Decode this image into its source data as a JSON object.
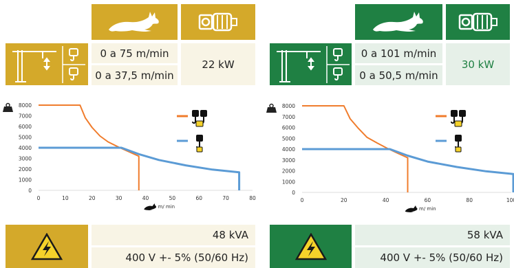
{
  "panels": [
    {
      "id": "left",
      "accent": "#d4a92a",
      "light": "#f8f4e5",
      "speed_rows": [
        "0 a 75 m/min",
        "0 a 37,5 m/min"
      ],
      "power": "22 kW",
      "kva": "48 kVA",
      "voltage": "400 V +- 5% (50/60 Hz)",
      "axis_unit": "m/ min",
      "icons": [
        "rabbit-icon",
        "motor-icon",
        "crane-icon",
        "hook-icon",
        "double-hook-icon",
        "weight-icon",
        "electric-hazard-icon"
      ],
      "chart_data": {
        "type": "line",
        "x_ticks": [
          0,
          10,
          20,
          30,
          40,
          50,
          60,
          70,
          80
        ],
        "y_ticks": [
          0,
          1000,
          2000,
          3000,
          4000,
          5000,
          6000,
          7000,
          8000
        ],
        "xlim": [
          0,
          80
        ],
        "ylim": [
          0,
          8000
        ],
        "xlabel": "m/ min",
        "series": [
          {
            "color": "#f07c2c",
            "x": [
              0,
              15.5,
              17.5,
              20,
              23,
              26,
              30,
              34,
              37.5,
              37.5
            ],
            "y": [
              8000,
              8000,
              6800,
              5900,
              5100,
              4550,
              4050,
              3600,
              3200,
              0
            ]
          },
          {
            "color": "#5b9bd5",
            "x": [
              0,
              31,
              37.5,
              45,
              55,
              65,
              75,
              75
            ],
            "y": [
              4000,
              4000,
              3400,
              2850,
              2350,
              1950,
              1700,
              0
            ]
          }
        ]
      }
    },
    {
      "id": "right",
      "accent": "#1f8043",
      "light": "#e6f0e8",
      "speed_rows": [
        "0 a 101 m/min",
        "0 a 50,5 m/min"
      ],
      "power": "30 kW",
      "kva": "58 kVA",
      "voltage": "400 V +- 5% (50/60 Hz)",
      "axis_unit": "m/ min",
      "icons": [
        "rabbit-icon",
        "motor-icon",
        "crane-icon",
        "hook-icon",
        "double-hook-icon",
        "weight-icon",
        "electric-hazard-icon"
      ],
      "chart_data": {
        "type": "line",
        "x_ticks": [
          0,
          20,
          40,
          60,
          80,
          100
        ],
        "y_ticks": [
          0,
          1000,
          2000,
          3000,
          4000,
          5000,
          6000,
          7000,
          8000
        ],
        "xlim": [
          0,
          100
        ],
        "ylim": [
          0,
          8000
        ],
        "xlabel": "m/ min",
        "series": [
          {
            "color": "#f07c2c",
            "x": [
              0,
              20,
              23,
              27,
              31,
              36,
              41,
              46,
              50.5,
              50.5
            ],
            "y": [
              8000,
              8000,
              6800,
              5900,
              5100,
              4550,
              4050,
              3600,
              3200,
              0
            ]
          },
          {
            "color": "#5b9bd5",
            "x": [
              0,
              42,
              50.5,
              60,
              74,
              88,
              101,
              101
            ],
            "y": [
              4000,
              4000,
              3400,
              2850,
              2350,
              1950,
              1700,
              0
            ]
          }
        ]
      }
    }
  ]
}
